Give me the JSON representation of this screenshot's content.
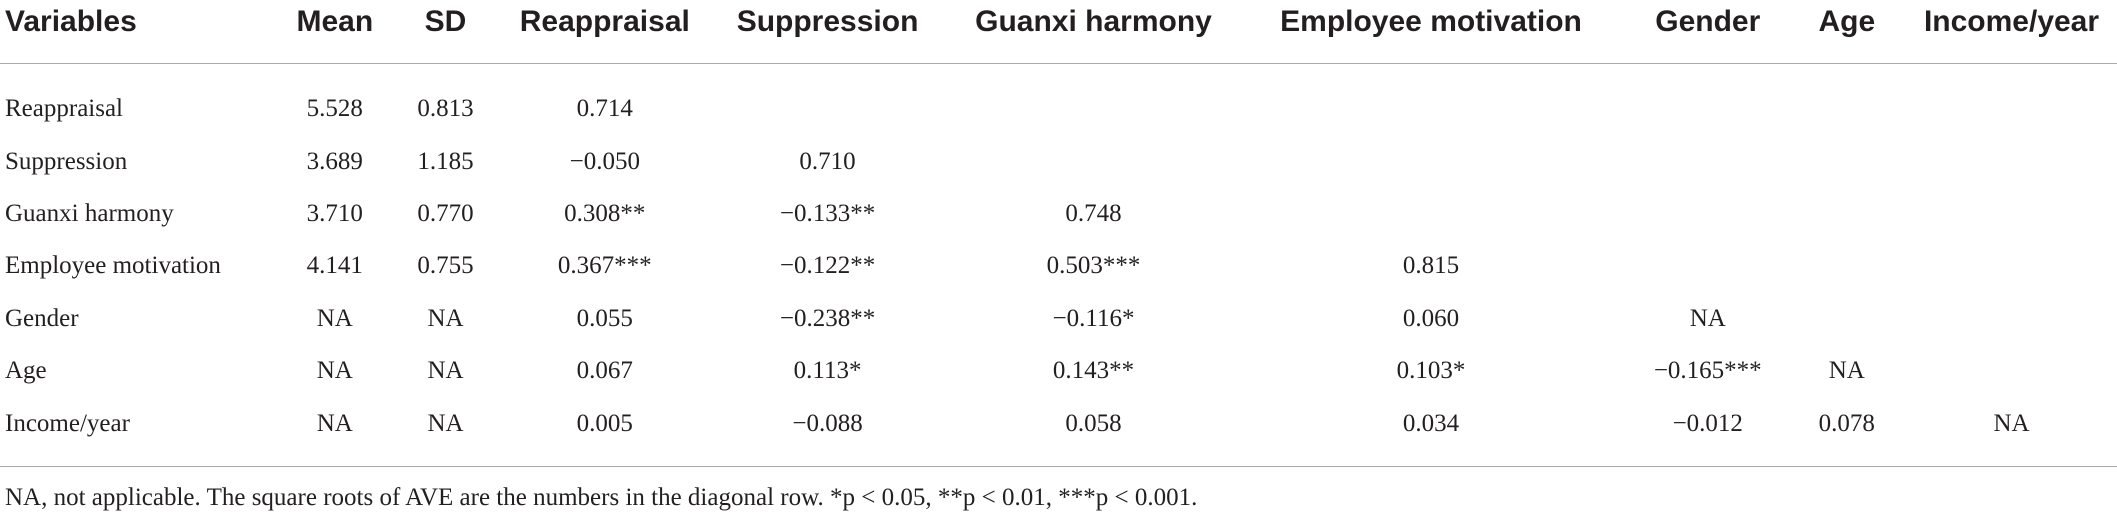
{
  "table": {
    "columns": [
      "Variables",
      "Mean",
      "SD",
      "Reappraisal",
      "Suppression",
      "Guanxi harmony",
      "Employee motivation",
      "Gender",
      "Age",
      "Income/year"
    ],
    "rows": [
      [
        "Reappraisal",
        "5.528",
        "0.813",
        "0.714"
      ],
      [
        "Suppression",
        "3.689",
        "1.185",
        "−0.050",
        "0.710"
      ],
      [
        "Guanxi harmony",
        "3.710",
        "0.770",
        "0.308**",
        "−0.133**",
        "0.748"
      ],
      [
        "Employee motivation",
        "4.141",
        "0.755",
        "0.367***",
        "−0.122**",
        "0.503***",
        "0.815"
      ],
      [
        "Gender",
        "NA",
        "NA",
        "0.055",
        "−0.238**",
        "−0.116*",
        "0.060",
        "NA"
      ],
      [
        "Age",
        "NA",
        "NA",
        "0.067",
        "0.113*",
        "0.143**",
        "0.103*",
        "−0.165***",
        "NA"
      ],
      [
        "Income/year",
        "NA",
        "NA",
        "0.005",
        "−0.088",
        "0.058",
        "0.034",
        "−0.012",
        "0.078",
        "NA"
      ]
    ],
    "footnote": "NA, not applicable. The square roots of AVE are the numbers in the diagonal row. *p < 0.05, **p < 0.01, ***p < 0.001."
  }
}
